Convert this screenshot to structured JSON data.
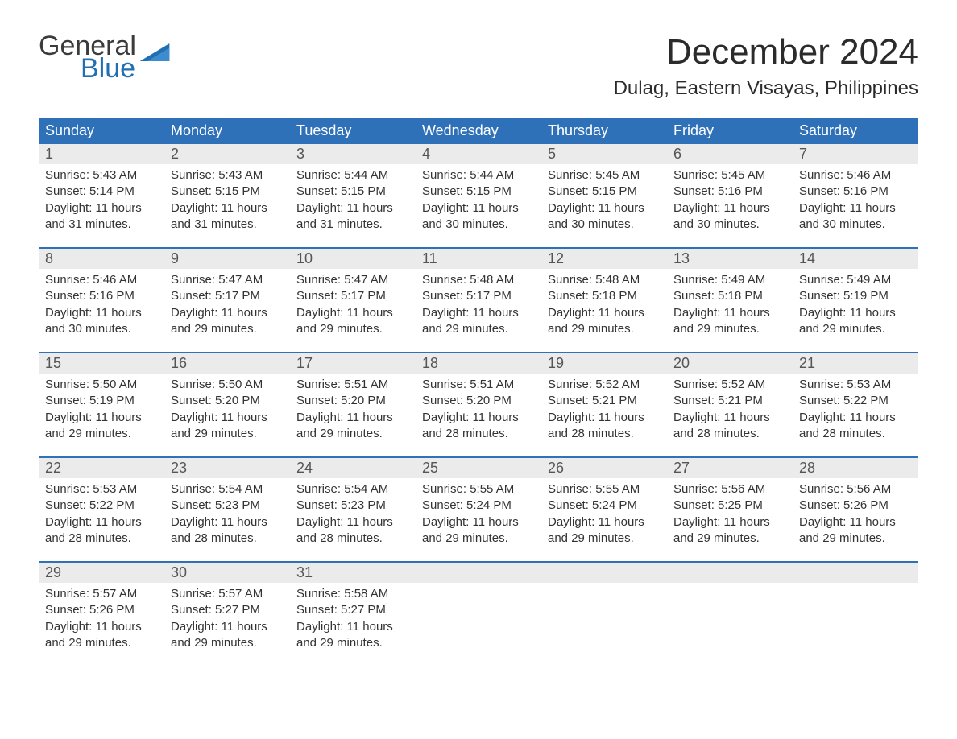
{
  "brand": {
    "word1": "General",
    "word2": "Blue",
    "flag_color": "#1f6fb2",
    "text_gray": "#3b3b3b"
  },
  "title": "December 2024",
  "location": "Dulag, Eastern Visayas, Philippines",
  "colors": {
    "header_bg": "#2f71b8",
    "header_fg": "#ffffff",
    "daynum_bg": "#ebebeb",
    "daynum_fg": "#555555",
    "body_text": "#333333",
    "rule": "#2f71b8",
    "page_bg": "#ffffff"
  },
  "weekdays": [
    "Sunday",
    "Monday",
    "Tuesday",
    "Wednesday",
    "Thursday",
    "Friday",
    "Saturday"
  ],
  "weeks": [
    [
      {
        "n": "1",
        "sr": "Sunrise: 5:43 AM",
        "ss": "Sunset: 5:14 PM",
        "dl": "Daylight: 11 hours and 31 minutes."
      },
      {
        "n": "2",
        "sr": "Sunrise: 5:43 AM",
        "ss": "Sunset: 5:15 PM",
        "dl": "Daylight: 11 hours and 31 minutes."
      },
      {
        "n": "3",
        "sr": "Sunrise: 5:44 AM",
        "ss": "Sunset: 5:15 PM",
        "dl": "Daylight: 11 hours and 31 minutes."
      },
      {
        "n": "4",
        "sr": "Sunrise: 5:44 AM",
        "ss": "Sunset: 5:15 PM",
        "dl": "Daylight: 11 hours and 30 minutes."
      },
      {
        "n": "5",
        "sr": "Sunrise: 5:45 AM",
        "ss": "Sunset: 5:15 PM",
        "dl": "Daylight: 11 hours and 30 minutes."
      },
      {
        "n": "6",
        "sr": "Sunrise: 5:45 AM",
        "ss": "Sunset: 5:16 PM",
        "dl": "Daylight: 11 hours and 30 minutes."
      },
      {
        "n": "7",
        "sr": "Sunrise: 5:46 AM",
        "ss": "Sunset: 5:16 PM",
        "dl": "Daylight: 11 hours and 30 minutes."
      }
    ],
    [
      {
        "n": "8",
        "sr": "Sunrise: 5:46 AM",
        "ss": "Sunset: 5:16 PM",
        "dl": "Daylight: 11 hours and 30 minutes."
      },
      {
        "n": "9",
        "sr": "Sunrise: 5:47 AM",
        "ss": "Sunset: 5:17 PM",
        "dl": "Daylight: 11 hours and 29 minutes."
      },
      {
        "n": "10",
        "sr": "Sunrise: 5:47 AM",
        "ss": "Sunset: 5:17 PM",
        "dl": "Daylight: 11 hours and 29 minutes."
      },
      {
        "n": "11",
        "sr": "Sunrise: 5:48 AM",
        "ss": "Sunset: 5:17 PM",
        "dl": "Daylight: 11 hours and 29 minutes."
      },
      {
        "n": "12",
        "sr": "Sunrise: 5:48 AM",
        "ss": "Sunset: 5:18 PM",
        "dl": "Daylight: 11 hours and 29 minutes."
      },
      {
        "n": "13",
        "sr": "Sunrise: 5:49 AM",
        "ss": "Sunset: 5:18 PM",
        "dl": "Daylight: 11 hours and 29 minutes."
      },
      {
        "n": "14",
        "sr": "Sunrise: 5:49 AM",
        "ss": "Sunset: 5:19 PM",
        "dl": "Daylight: 11 hours and 29 minutes."
      }
    ],
    [
      {
        "n": "15",
        "sr": "Sunrise: 5:50 AM",
        "ss": "Sunset: 5:19 PM",
        "dl": "Daylight: 11 hours and 29 minutes."
      },
      {
        "n": "16",
        "sr": "Sunrise: 5:50 AM",
        "ss": "Sunset: 5:20 PM",
        "dl": "Daylight: 11 hours and 29 minutes."
      },
      {
        "n": "17",
        "sr": "Sunrise: 5:51 AM",
        "ss": "Sunset: 5:20 PM",
        "dl": "Daylight: 11 hours and 29 minutes."
      },
      {
        "n": "18",
        "sr": "Sunrise: 5:51 AM",
        "ss": "Sunset: 5:20 PM",
        "dl": "Daylight: 11 hours and 28 minutes."
      },
      {
        "n": "19",
        "sr": "Sunrise: 5:52 AM",
        "ss": "Sunset: 5:21 PM",
        "dl": "Daylight: 11 hours and 28 minutes."
      },
      {
        "n": "20",
        "sr": "Sunrise: 5:52 AM",
        "ss": "Sunset: 5:21 PM",
        "dl": "Daylight: 11 hours and 28 minutes."
      },
      {
        "n": "21",
        "sr": "Sunrise: 5:53 AM",
        "ss": "Sunset: 5:22 PM",
        "dl": "Daylight: 11 hours and 28 minutes."
      }
    ],
    [
      {
        "n": "22",
        "sr": "Sunrise: 5:53 AM",
        "ss": "Sunset: 5:22 PM",
        "dl": "Daylight: 11 hours and 28 minutes."
      },
      {
        "n": "23",
        "sr": "Sunrise: 5:54 AM",
        "ss": "Sunset: 5:23 PM",
        "dl": "Daylight: 11 hours and 28 minutes."
      },
      {
        "n": "24",
        "sr": "Sunrise: 5:54 AM",
        "ss": "Sunset: 5:23 PM",
        "dl": "Daylight: 11 hours and 28 minutes."
      },
      {
        "n": "25",
        "sr": "Sunrise: 5:55 AM",
        "ss": "Sunset: 5:24 PM",
        "dl": "Daylight: 11 hours and 29 minutes."
      },
      {
        "n": "26",
        "sr": "Sunrise: 5:55 AM",
        "ss": "Sunset: 5:24 PM",
        "dl": "Daylight: 11 hours and 29 minutes."
      },
      {
        "n": "27",
        "sr": "Sunrise: 5:56 AM",
        "ss": "Sunset: 5:25 PM",
        "dl": "Daylight: 11 hours and 29 minutes."
      },
      {
        "n": "28",
        "sr": "Sunrise: 5:56 AM",
        "ss": "Sunset: 5:26 PM",
        "dl": "Daylight: 11 hours and 29 minutes."
      }
    ],
    [
      {
        "n": "29",
        "sr": "Sunrise: 5:57 AM",
        "ss": "Sunset: 5:26 PM",
        "dl": "Daylight: 11 hours and 29 minutes."
      },
      {
        "n": "30",
        "sr": "Sunrise: 5:57 AM",
        "ss": "Sunset: 5:27 PM",
        "dl": "Daylight: 11 hours and 29 minutes."
      },
      {
        "n": "31",
        "sr": "Sunrise: 5:58 AM",
        "ss": "Sunset: 5:27 PM",
        "dl": "Daylight: 11 hours and 29 minutes."
      },
      null,
      null,
      null,
      null
    ]
  ]
}
